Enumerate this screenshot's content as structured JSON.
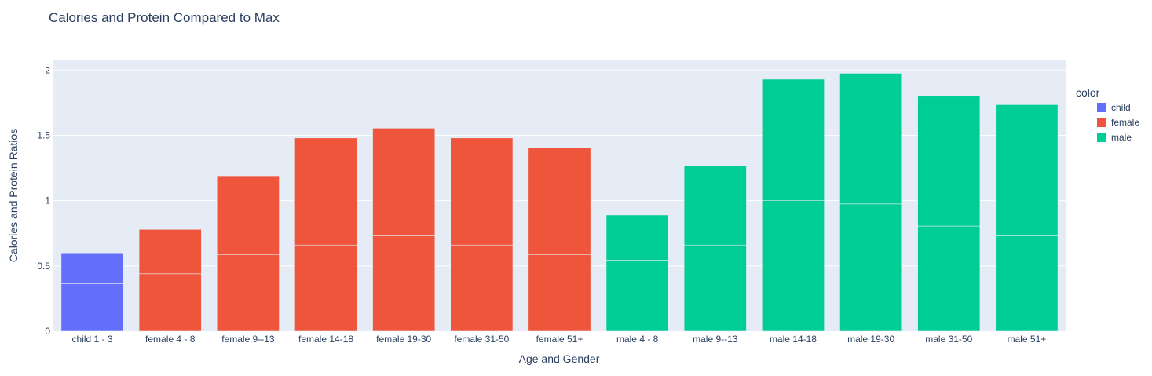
{
  "chart_data": {
    "type": "bar",
    "barmode": "stack",
    "title": "Calories and Protein Compared to Max",
    "xlabel": "Age and Gender",
    "ylabel": "Calories and Protein Ratios",
    "ylim": [
      0,
      2.08
    ],
    "yticks": [
      0,
      0.5,
      1,
      1.5,
      2
    ],
    "ytick_labels": [
      "0",
      "0.5",
      "1",
      "1.5",
      "2"
    ],
    "grid": true,
    "legend": {
      "title": "color",
      "placement": "right"
    },
    "categories": [
      "child 1 - 3",
      "female 4 - 8",
      "female 9--13",
      "female 14-18",
      "female 19-30",
      "female 31-50",
      "female 51+",
      "male 4 - 8",
      "male 9--13",
      "male 14-18",
      "male 19-30",
      "male 31-50",
      "male 51+"
    ],
    "groups": [
      "child",
      "female",
      "female",
      "female",
      "female",
      "female",
      "female",
      "male",
      "male",
      "male",
      "male",
      "male",
      "male"
    ],
    "series": [
      {
        "name": "child",
        "color": "#636efa"
      },
      {
        "name": "female",
        "color": "#ef553b"
      },
      {
        "name": "male",
        "color": "#00cc96"
      }
    ],
    "segments": [
      [
        0.365,
        0.235
      ],
      [
        0.44,
        0.34
      ],
      [
        0.585,
        0.605
      ],
      [
        0.66,
        0.82
      ],
      [
        0.73,
        0.825
      ],
      [
        0.66,
        0.82
      ],
      [
        0.585,
        0.82
      ],
      [
        0.545,
        0.345
      ],
      [
        0.66,
        0.61
      ],
      [
        1.0,
        0.93
      ],
      [
        0.975,
        1.0
      ],
      [
        0.805,
        1.0
      ],
      [
        0.73,
        1.005
      ]
    ]
  }
}
